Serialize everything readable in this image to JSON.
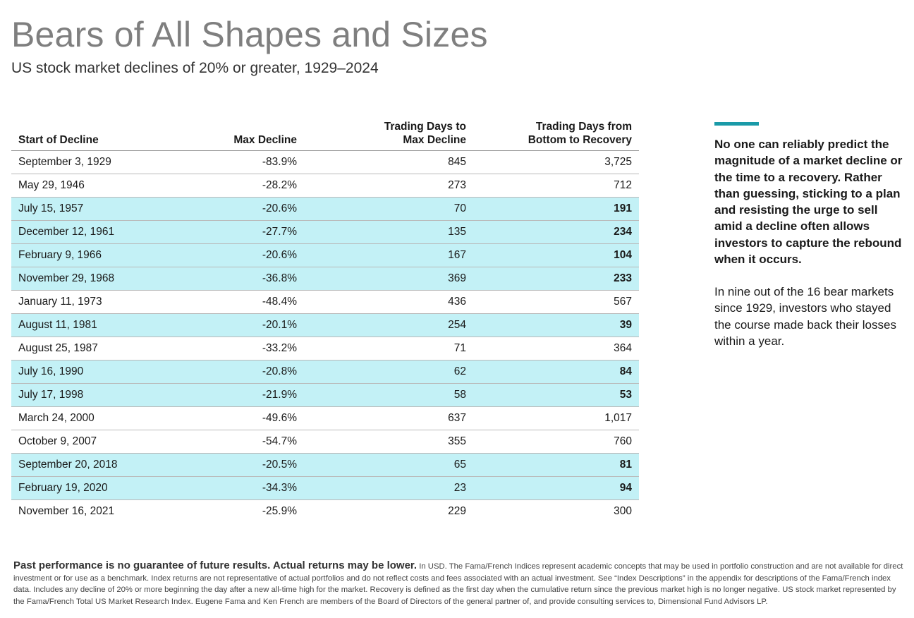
{
  "header": {
    "title": "Bears of All Shapes and Sizes",
    "subtitle": "US stock market declines of 20% or greater, 1929–2024"
  },
  "table": {
    "columns": [
      "Start of Decline",
      "Max Decline",
      "Trading Days to Max Decline",
      "Trading Days from Bottom to Recovery"
    ],
    "column_lines": [
      [
        "Start of Decline"
      ],
      [
        "Max Decline"
      ],
      [
        "Trading Days to",
        "Max Decline"
      ],
      [
        "Trading Days from",
        "Bottom to Recovery"
      ]
    ],
    "highlight_color": "#c3f1f6",
    "rows": [
      {
        "start": "September 3, 1929",
        "max_decline": "-83.9%",
        "days_to_max": "845",
        "days_to_recovery": "3,725",
        "recovered_within_year": false
      },
      {
        "start": "May 29, 1946",
        "max_decline": "-28.2%",
        "days_to_max": "273",
        "days_to_recovery": "712",
        "recovered_within_year": false
      },
      {
        "start": "July 15, 1957",
        "max_decline": "-20.6%",
        "days_to_max": "70",
        "days_to_recovery": "191",
        "recovered_within_year": true
      },
      {
        "start": "December 12, 1961",
        "max_decline": "-27.7%",
        "days_to_max": "135",
        "days_to_recovery": "234",
        "recovered_within_year": true
      },
      {
        "start": "February 9, 1966",
        "max_decline": "-20.6%",
        "days_to_max": "167",
        "days_to_recovery": "104",
        "recovered_within_year": true
      },
      {
        "start": "November 29, 1968",
        "max_decline": "-36.8%",
        "days_to_max": "369",
        "days_to_recovery": "233",
        "recovered_within_year": true
      },
      {
        "start": "January 11, 1973",
        "max_decline": "-48.4%",
        "days_to_max": "436",
        "days_to_recovery": "567",
        "recovered_within_year": false
      },
      {
        "start": "August 11, 1981",
        "max_decline": "-20.1%",
        "days_to_max": "254",
        "days_to_recovery": "39",
        "recovered_within_year": true
      },
      {
        "start": "August 25, 1987",
        "max_decline": "-33.2%",
        "days_to_max": "71",
        "days_to_recovery": "364",
        "recovered_within_year": false
      },
      {
        "start": "July 16, 1990",
        "max_decline": "-20.8%",
        "days_to_max": "62",
        "days_to_recovery": "84",
        "recovered_within_year": true
      },
      {
        "start": "July 17, 1998",
        "max_decline": "-21.9%",
        "days_to_max": "58",
        "days_to_recovery": "53",
        "recovered_within_year": true
      },
      {
        "start": "March 24, 2000",
        "max_decline": "-49.6%",
        "days_to_max": "637",
        "days_to_recovery": "1,017",
        "recovered_within_year": false
      },
      {
        "start": "October 9, 2007",
        "max_decline": "-54.7%",
        "days_to_max": "355",
        "days_to_recovery": "760",
        "recovered_within_year": false
      },
      {
        "start": "September 20, 2018",
        "max_decline": "-20.5%",
        "days_to_max": "65",
        "days_to_recovery": "81",
        "recovered_within_year": true
      },
      {
        "start": "February 19, 2020",
        "max_decline": "-34.3%",
        "days_to_max": "23",
        "days_to_recovery": "94",
        "recovered_within_year": true
      },
      {
        "start": "November 16, 2021",
        "max_decline": "-25.9%",
        "days_to_max": "229",
        "days_to_recovery": "300",
        "recovered_within_year": false
      }
    ]
  },
  "callout": {
    "accent_color": "#1a9aa8",
    "bold_text": "No one can reliably predict the magnitude of a market decline or the time to a recovery. Rather than guessing, sticking to a plan and resisting the urge to sell amid a decline often allows investors to capture the rebound when it occurs.",
    "body_text": "In nine out of the 16 bear markets since 1929, investors who stayed the course made back their losses within a year."
  },
  "footnote": {
    "bold_text": "Past performance is no guarantee of future results. Actual returns may be lower.",
    "body_text": "In USD. The Fama/French Indices represent academic concepts that may be used in portfolio construction and are not available for direct investment or for use as a benchmark. Index returns are not representative of actual portfolios and do not reflect costs and fees associated with an actual investment. See “Index Descriptions” in the appendix for descriptions of the Fama/French index data. Includes any decline of 20% or more beginning the day after a new all-time high for the market. Recovery is defined as the first day when the cumulative return since the previous market high is no longer negative. US stock market represented by the Fama/French Total US Market Research Index. Eugene Fama and Ken French are members of the Board of Directors of the general partner of, and provide consulting services to, Dimensional Fund Advisors LP."
  }
}
